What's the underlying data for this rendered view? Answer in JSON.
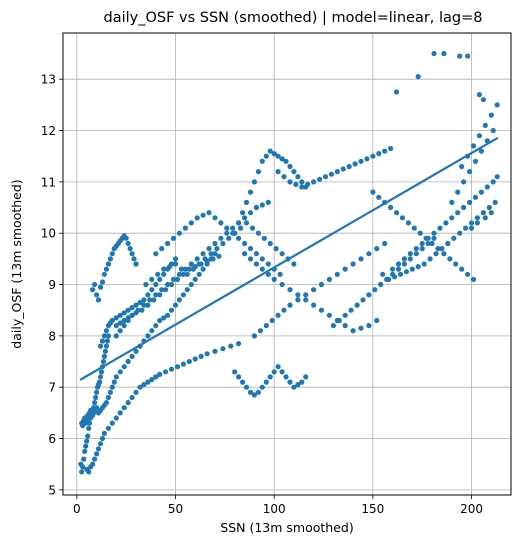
{
  "chart_data": {
    "type": "scatter",
    "title": "daily_OSF vs SSN (smoothed)  |  model=linear, lag=8",
    "xlabel": "SSN (13m smoothed)",
    "ylabel": "daily_OSF (13m smoothed)",
    "xlim": [
      -7,
      220
    ],
    "ylim": [
      4.9,
      13.9
    ],
    "xticks": [
      0,
      50,
      100,
      150,
      200
    ],
    "yticks": [
      5,
      6,
      7,
      8,
      9,
      10,
      11,
      12,
      13
    ],
    "grid": true,
    "legend": "none",
    "colors": {
      "points": "#1f77b4",
      "fit": "#1f77b4",
      "grid": "#b0b0b0"
    },
    "fit_line": {
      "x": [
        2,
        213
      ],
      "y": [
        7.15,
        11.85
      ]
    },
    "series": [
      {
        "x": [
          2,
          2.5,
          3,
          3.5,
          4,
          4.5,
          5,
          5.5,
          6,
          6.5,
          7,
          7.5,
          8,
          8.5,
          9,
          9.5,
          10,
          10.5,
          11,
          11.5,
          12,
          12.5,
          13,
          13.5,
          14,
          14.5,
          15,
          15.5,
          16,
          2.5,
          3,
          3.5,
          4,
          4.5,
          5,
          5.5,
          6,
          6.5,
          7,
          7.5,
          8,
          8.5,
          9,
          10,
          11,
          12,
          13,
          14,
          15,
          16,
          17,
          18,
          19,
          20,
          22,
          24,
          26,
          28,
          30,
          32,
          34,
          36,
          38,
          40,
          42,
          44,
          46,
          48,
          50,
          52,
          54,
          56,
          58,
          60,
          62,
          64,
          66,
          68,
          70,
          5,
          6,
          7,
          8,
          9,
          10,
          11,
          12,
          13,
          14,
          16,
          18,
          20,
          22,
          24,
          26,
          28,
          30,
          32,
          34,
          36,
          38,
          40,
          42,
          45,
          48,
          51,
          54,
          57,
          60,
          63,
          66,
          70,
          74,
          78,
          82,
          8,
          9,
          10,
          11,
          12,
          13,
          14,
          15,
          16,
          17,
          18,
          19,
          20,
          21,
          22,
          23,
          24,
          25,
          26,
          27,
          28,
          29,
          30,
          12,
          13,
          14,
          15,
          16,
          17,
          18,
          20,
          22,
          24,
          26,
          28,
          30,
          32,
          34,
          36,
          38,
          40,
          42,
          44,
          46,
          48,
          50,
          18,
          20,
          22,
          24,
          26,
          28,
          30,
          33,
          36,
          39,
          42,
          45,
          48,
          51,
          54,
          57,
          60,
          63,
          66,
          69,
          72,
          20,
          22,
          24,
          26,
          28,
          31,
          34,
          37,
          40,
          43,
          46,
          49,
          52,
          55,
          58,
          61,
          64,
          67,
          70,
          73,
          76,
          79,
          82,
          85,
          88,
          91,
          94,
          97,
          40,
          43,
          46,
          49,
          52,
          55,
          58,
          61,
          64,
          67,
          70,
          73,
          76,
          79,
          82,
          85,
          88,
          91,
          94,
          97,
          100,
          103,
          35,
          38,
          41,
          44,
          47,
          50,
          53,
          56,
          59,
          62,
          65,
          68,
          71,
          74,
          77,
          80,
          83,
          86,
          89,
          92,
          95,
          98,
          101,
          104,
          107,
          110,
          80,
          82,
          84,
          86,
          88,
          90,
          92,
          94,
          96,
          98,
          100,
          102,
          104,
          106,
          108,
          110,
          112,
          114,
          116,
          80,
          82,
          84,
          86,
          88,
          90,
          92,
          94,
          96,
          98,
          100,
          102,
          104,
          106,
          108,
          110,
          112,
          114,
          116,
          85,
          88,
          91,
          94,
          97,
          100,
          104,
          108,
          112,
          116,
          120,
          124,
          128,
          132,
          136,
          140,
          144,
          148,
          152,
          90,
          93,
          96,
          99,
          102,
          105,
          108,
          112,
          116,
          120,
          124,
          128,
          132,
          136,
          140,
          144,
          148,
          152,
          156,
          102,
          105,
          108,
          111,
          114,
          117,
          120,
          123,
          126,
          129,
          132,
          135,
          138,
          141,
          144,
          147,
          150,
          153,
          156,
          159,
          130,
          133,
          136,
          139,
          142,
          145,
          148,
          151,
          154,
          157,
          160,
          163,
          166,
          169,
          172,
          175,
          178,
          181,
          150,
          153,
          156,
          159,
          162,
          165,
          168,
          171,
          174,
          177,
          180,
          183,
          186,
          189,
          192,
          195,
          198,
          201,
          155,
          158,
          161,
          164,
          167,
          170,
          173,
          176,
          179,
          182,
          185,
          188,
          191,
          194,
          197,
          200,
          203,
          206,
          209,
          212,
          160,
          163,
          166,
          169,
          172,
          175,
          178,
          181,
          184,
          187,
          190,
          193,
          196,
          199,
          202,
          205,
          208,
          211,
          213,
          190,
          193,
          196,
          199,
          202,
          205,
          208,
          211,
          195,
          198,
          201,
          204,
          207,
          210,
          213,
          162,
          173,
          181,
          186,
          194,
          198,
          204,
          206,
          200,
          203,
          207,
          210
        ],
        "y": [
          5.5,
          5.35,
          5.45,
          5.6,
          5.75,
          5.85,
          5.95,
          6.05,
          6.2,
          6.3,
          6.4,
          6.5,
          6.55,
          6.6,
          6.7,
          6.8,
          6.9,
          7.0,
          7.05,
          7.1,
          7.2,
          7.3,
          7.4,
          7.5,
          7.6,
          7.7,
          7.8,
          7.9,
          8.0,
          6.3,
          6.25,
          6.35,
          6.4,
          6.3,
          6.35,
          6.45,
          6.4,
          6.5,
          6.55,
          6.5,
          6.45,
          6.5,
          6.55,
          6.6,
          6.5,
          6.55,
          6.6,
          6.65,
          6.7,
          6.8,
          6.9,
          7.0,
          7.1,
          7.2,
          7.3,
          7.4,
          7.5,
          7.6,
          7.7,
          7.8,
          7.9,
          8.0,
          8.1,
          8.2,
          8.3,
          8.35,
          8.4,
          8.5,
          8.6,
          8.7,
          8.8,
          8.9,
          9.0,
          9.1,
          9.2,
          9.3,
          9.4,
          9.5,
          9.6,
          5.4,
          5.35,
          5.45,
          5.5,
          5.6,
          5.7,
          5.8,
          5.9,
          6.0,
          6.1,
          6.2,
          6.3,
          6.4,
          6.5,
          6.6,
          6.7,
          6.8,
          6.9,
          7.0,
          7.05,
          7.1,
          7.15,
          7.2,
          7.25,
          7.3,
          7.35,
          7.4,
          7.45,
          7.5,
          7.55,
          7.6,
          7.65,
          7.7,
          7.75,
          7.8,
          7.85,
          8.9,
          9.0,
          8.8,
          8.7,
          8.95,
          9.05,
          9.2,
          9.3,
          9.4,
          9.5,
          9.6,
          9.7,
          9.75,
          9.8,
          9.85,
          9.9,
          9.95,
          9.9,
          9.8,
          9.7,
          9.6,
          9.5,
          9.4,
          7.8,
          7.9,
          8.0,
          8.1,
          8.2,
          8.25,
          8.3,
          8.35,
          8.4,
          8.45,
          8.5,
          8.55,
          8.6,
          8.65,
          8.7,
          8.8,
          8.9,
          9.0,
          9.1,
          9.2,
          9.3,
          9.4,
          9.5,
          8.3,
          8.2,
          8.25,
          8.3,
          8.35,
          8.4,
          8.45,
          8.5,
          8.6,
          8.7,
          8.8,
          8.9,
          9.0,
          9.1,
          9.2,
          9.3,
          9.35,
          9.4,
          9.45,
          9.5,
          9.55,
          8.0,
          8.1,
          8.2,
          8.3,
          8.4,
          8.5,
          8.6,
          8.7,
          8.8,
          8.9,
          9.0,
          9.1,
          9.2,
          9.3,
          9.4,
          9.5,
          9.6,
          9.7,
          9.8,
          9.9,
          10.0,
          10.1,
          10.2,
          10.3,
          10.4,
          10.5,
          10.55,
          10.6,
          9.6,
          9.7,
          9.8,
          9.9,
          10.0,
          10.1,
          10.2,
          10.3,
          10.35,
          10.4,
          10.3,
          10.2,
          10.1,
          10.0,
          9.9,
          9.8,
          9.7,
          9.6,
          9.5,
          9.4,
          9.3,
          9.2,
          9.0,
          9.1,
          9.2,
          9.3,
          9.35,
          9.4,
          9.3,
          9.2,
          9.3,
          9.4,
          9.5,
          9.6,
          9.7,
          9.8,
          9.9,
          10.0,
          10.1,
          10.2,
          10.1,
          10.0,
          9.9,
          9.8,
          9.7,
          9.6,
          9.5,
          9.4,
          10.0,
          10.2,
          10.4,
          10.6,
          10.8,
          11.0,
          11.2,
          11.4,
          11.5,
          11.6,
          11.55,
          11.5,
          11.45,
          11.4,
          11.3,
          11.2,
          11.1,
          11.0,
          10.9,
          7.3,
          7.2,
          7.1,
          7.0,
          6.9,
          6.85,
          6.9,
          7.0,
          7.1,
          7.2,
          7.3,
          7.4,
          7.3,
          7.2,
          7.1,
          7.0,
          7.05,
          7.1,
          7.2,
          9.6,
          9.5,
          9.4,
          9.3,
          9.2,
          9.1,
          9.0,
          8.9,
          8.8,
          8.7,
          8.6,
          8.5,
          8.4,
          8.3,
          8.2,
          8.1,
          8.15,
          8.2,
          8.3,
          8.0,
          8.1,
          8.2,
          8.3,
          8.4,
          8.5,
          8.6,
          8.7,
          8.8,
          8.9,
          9.0,
          9.1,
          9.2,
          9.3,
          9.4,
          9.5,
          9.6,
          9.7,
          9.8,
          11.2,
          11.1,
          11.0,
          10.95,
          10.9,
          10.95,
          11.0,
          11.05,
          11.1,
          11.15,
          11.2,
          11.25,
          11.3,
          11.35,
          11.4,
          11.45,
          11.5,
          11.55,
          11.6,
          11.65,
          8.2,
          8.3,
          8.4,
          8.5,
          8.6,
          8.7,
          8.8,
          8.9,
          9.0,
          9.1,
          9.2,
          9.3,
          9.4,
          9.5,
          9.6,
          9.7,
          9.8,
          9.9,
          10.8,
          10.7,
          10.6,
          10.5,
          10.4,
          10.3,
          10.2,
          10.1,
          10.0,
          9.9,
          9.8,
          9.7,
          9.6,
          9.5,
          9.4,
          9.3,
          9.2,
          9.1,
          9.2,
          9.1,
          9.15,
          9.2,
          9.25,
          9.3,
          9.35,
          9.4,
          9.5,
          9.6,
          9.7,
          9.8,
          9.9,
          10.0,
          10.1,
          10.2,
          10.3,
          10.4,
          10.5,
          10.6,
          9.3,
          9.4,
          9.5,
          9.6,
          9.7,
          9.8,
          9.9,
          10.0,
          10.1,
          10.2,
          10.3,
          10.4,
          10.5,
          10.6,
          10.7,
          10.8,
          10.9,
          11.0,
          11.1,
          10.6,
          10.8,
          11.0,
          11.2,
          11.4,
          11.6,
          11.8,
          12.0,
          11.3,
          11.5,
          11.7,
          11.9,
          12.1,
          12.3,
          12.5,
          12.75,
          13.05,
          13.5,
          13.5,
          13.45,
          13.45,
          12.7,
          12.6,
          10.1,
          10.2,
          10.3,
          10.4
        ]
      }
    ]
  }
}
